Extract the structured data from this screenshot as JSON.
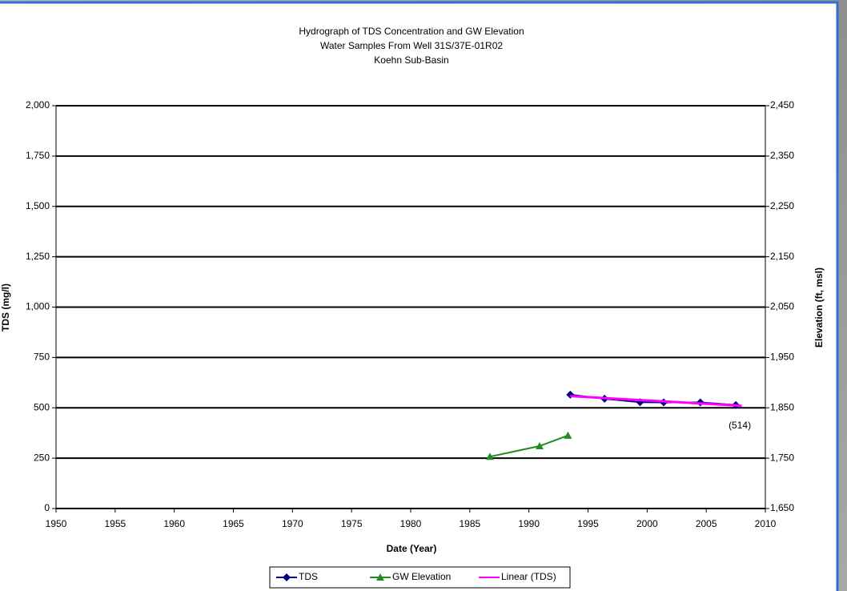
{
  "chart_data": {
    "type": "line",
    "title": "Hydrograph of TDS Concentration and GW Elevation",
    "subtitle": [
      "Water Samples From Well 31S/37E-01R02",
      "Koehn Sub-Basin"
    ],
    "x_label": "Date (Year)",
    "y_label": "TDS (mg/l)",
    "y2_label": "Elevation (ft, msl)",
    "xlim": [
      1950,
      2010
    ],
    "xticks": [
      1950,
      1955,
      1960,
      1965,
      1970,
      1975,
      1980,
      1985,
      1990,
      1995,
      2000,
      2005,
      2010
    ],
    "ylim": [
      0,
      2000
    ],
    "yticks": [
      0,
      250,
      500,
      750,
      {
        "value": 1000,
        "label": "1,000"
      },
      {
        "value": 1250,
        "label": "1,250"
      },
      {
        "value": 1500,
        "label": "1,500"
      },
      {
        "value": 1750,
        "label": "1,750"
      },
      {
        "value": 2000,
        "label": "2,000"
      }
    ],
    "y2lim": [
      1650,
      2450
    ],
    "y2ticks": [
      {
        "value": 1650,
        "label": "1,650"
      },
      {
        "value": 1750,
        "label": "1,750"
      },
      {
        "value": 1850,
        "label": "1,850"
      },
      {
        "value": 1950,
        "label": "1,950"
      },
      {
        "value": 2050,
        "label": "2,050"
      },
      {
        "value": 2150,
        "label": "2,150"
      },
      {
        "value": 2250,
        "label": "2,250"
      },
      {
        "value": 2350,
        "label": "2,350"
      },
      {
        "value": 2450,
        "label": "2,450"
      }
    ],
    "grid": true,
    "legend": "bottom",
    "series": [
      {
        "name": "TDS",
        "color": "#000080",
        "marker": "diamond",
        "x": [
          1993.5,
          1996.4,
          1999.4,
          2001.4,
          2004.5,
          2007.5
        ],
        "values": [
          565,
          545,
          528,
          527,
          527,
          514
        ],
        "value_labels": [
          null,
          null,
          null,
          null,
          null,
          "(514)"
        ]
      },
      {
        "name": "GW Elevation",
        "color": "#228b22",
        "marker": "triangle",
        "axis": "y2",
        "x": [
          1986.7,
          1990.9,
          1993.3
        ],
        "values": [
          1753,
          1774,
          1795
        ]
      },
      {
        "name": "Linear (TDS)",
        "color": "#ff00ff",
        "marker": "none",
        "x": [
          1993.5,
          2008
        ],
        "values": [
          558,
          510
        ]
      }
    ]
  }
}
